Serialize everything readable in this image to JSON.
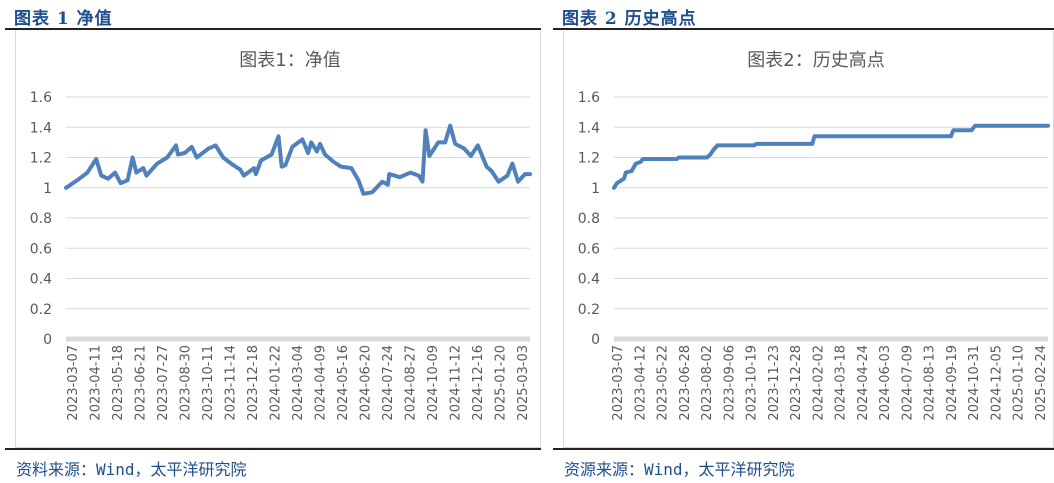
{
  "panels": [
    {
      "header": "图表 1 净值",
      "source": "资料来源：Wind，太平洋研究院"
    },
    {
      "header": "图表 2 历史高点",
      "source": "资源来源：Wind，太平洋研究院"
    }
  ],
  "colors": {
    "line": "#4f81bd",
    "grid": "#d9d9d9",
    "header": "#1f4e8c"
  },
  "chart_data": [
    {
      "type": "line",
      "title": "图表1：净值",
      "ylim": [
        0,
        1.6
      ],
      "yticks": [
        "0",
        "0.2",
        "0.4",
        "0.6",
        "0.8",
        "1",
        "1.2",
        "1.4",
        "1.6"
      ],
      "grid": true,
      "xtick_labels": [
        "2023-03-07",
        "2023-04-11",
        "2023-05-18",
        "2023-06-21",
        "2023-07-27",
        "2023-08-30",
        "2023-10-11",
        "2023-11-14",
        "2023-12-18",
        "2024-01-22",
        "2024-03-04",
        "2024-04-09",
        "2024-05-16",
        "2024-06-20",
        "2024-07-24",
        "2024-08-27",
        "2024-10-09",
        "2024-11-12",
        "2024-12-16",
        "2025-01-20",
        "2025-03-03"
      ],
      "x": [
        "2023-03-07",
        "2023-03-25",
        "2023-04-10",
        "2023-04-24",
        "2023-05-02",
        "2023-05-13",
        "2023-05-24",
        "2023-06-02",
        "2023-06-13",
        "2023-06-21",
        "2023-06-27",
        "2023-07-08",
        "2023-07-13",
        "2023-07-30",
        "2023-08-15",
        "2023-08-29",
        "2023-09-01",
        "2023-09-12",
        "2023-09-23",
        "2023-10-01",
        "2023-10-20",
        "2023-10-31",
        "2023-11-12",
        "2023-11-28",
        "2023-12-09",
        "2023-12-15",
        "2023-12-31",
        "2024-01-03",
        "2024-01-11",
        "2024-01-28",
        "2024-02-08",
        "2024-02-13",
        "2024-02-19",
        "2024-03-01",
        "2024-03-17",
        "2024-03-26",
        "2024-03-31",
        "2024-04-09",
        "2024-04-14",
        "2024-04-22",
        "2024-05-06",
        "2024-05-17",
        "2024-06-03",
        "2024-06-14",
        "2024-06-22",
        "2024-07-06",
        "2024-07-22",
        "2024-07-31",
        "2024-08-02",
        "2024-08-19",
        "2024-09-05",
        "2024-09-18",
        "2024-09-24",
        "2024-09-29",
        "2024-10-05",
        "2024-10-19",
        "2024-10-30",
        "2024-11-07",
        "2024-11-15",
        "2024-11-29",
        "2024-12-10",
        "2024-12-21",
        "2025-01-04",
        "2025-01-12",
        "2025-01-23",
        "2025-02-06",
        "2025-02-14",
        "2025-02-23",
        "2025-03-06",
        "2025-03-14"
      ],
      "y": [
        1.0,
        1.05,
        1.1,
        1.19,
        1.08,
        1.06,
        1.1,
        1.03,
        1.05,
        1.2,
        1.1,
        1.13,
        1.08,
        1.16,
        1.2,
        1.28,
        1.22,
        1.23,
        1.27,
        1.2,
        1.26,
        1.28,
        1.2,
        1.15,
        1.12,
        1.08,
        1.13,
        1.09,
        1.18,
        1.22,
        1.34,
        1.14,
        1.15,
        1.27,
        1.32,
        1.23,
        1.3,
        1.24,
        1.29,
        1.22,
        1.17,
        1.14,
        1.13,
        1.05,
        0.96,
        0.97,
        1.04,
        1.02,
        1.09,
        1.07,
        1.1,
        1.08,
        1.04,
        1.38,
        1.21,
        1.3,
        1.3,
        1.41,
        1.29,
        1.26,
        1.21,
        1.28,
        1.14,
        1.11,
        1.04,
        1.08,
        1.16,
        1.04,
        1.09,
        1.09
      ]
    },
    {
      "type": "line",
      "title": "图表2：历史高点",
      "ylim": [
        0,
        1.6
      ],
      "yticks": [
        "0",
        "0.2",
        "0.4",
        "0.6",
        "0.8",
        "1",
        "1.2",
        "1.4",
        "1.6"
      ],
      "grid": true,
      "xtick_labels": [
        "2023-03-07",
        "2023-04-12",
        "2023-05-22",
        "2023-06-28",
        "2023-08-02",
        "2023-09-06",
        "2023-10-19",
        "2023-11-23",
        "2023-12-28",
        "2024-02-02",
        "2024-03-18",
        "2024-04-24",
        "2024-06-03",
        "2024-07-09",
        "2024-08-13",
        "2024-09-19",
        "2024-10-31",
        "2024-12-05",
        "2025-01-10",
        "2025-02-24"
      ],
      "x": [
        "2023-03-07",
        "2023-03-12",
        "2023-03-20",
        "2023-03-24",
        "2023-03-27",
        "2023-04-06",
        "2023-04-13",
        "2023-04-21",
        "2023-04-25",
        "2023-06-22",
        "2023-06-25",
        "2023-08-12",
        "2023-08-18",
        "2023-08-23",
        "2023-08-30",
        "2023-10-31",
        "2023-11-04",
        "2024-02-07",
        "2024-02-11",
        "2024-09-30",
        "2024-10-04",
        "2024-11-04",
        "2024-11-10",
        "2025-03-14"
      ],
      "y": [
        1.0,
        1.03,
        1.05,
        1.06,
        1.1,
        1.11,
        1.16,
        1.17,
        1.19,
        1.19,
        1.2,
        1.2,
        1.22,
        1.25,
        1.28,
        1.28,
        1.29,
        1.29,
        1.34,
        1.34,
        1.38,
        1.38,
        1.41,
        1.41
      ]
    }
  ]
}
